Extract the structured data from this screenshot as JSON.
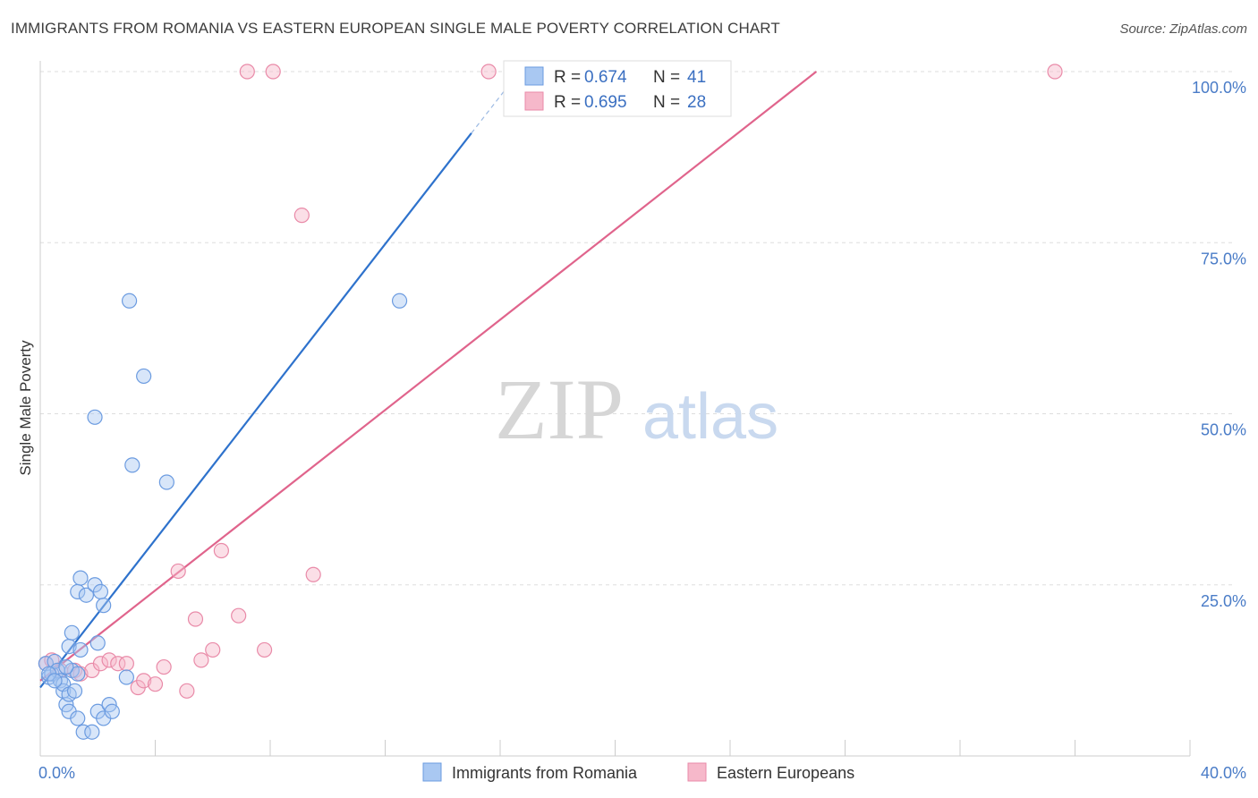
{
  "header": {
    "title": "IMMIGRANTS FROM ROMANIA VS EASTERN EUROPEAN SINGLE MALE POVERTY CORRELATION CHART",
    "source": "Source: ZipAtlas.com"
  },
  "watermark": {
    "zip": "ZIP",
    "atlas": "atlas"
  },
  "colors": {
    "blue_fill": "#a9c8f2",
    "blue_stroke": "#6b9be0",
    "blue_line": "#2e72cc",
    "pink_fill": "#f6b8ca",
    "pink_stroke": "#e98aa8",
    "pink_line": "#e0648c",
    "grid": "#dddddd",
    "tick_text": "#4a7cc7"
  },
  "chart_data": {
    "type": "scatter",
    "title": "IMMIGRANTS FROM ROMANIA VS EASTERN EUROPEAN SINGLE MALE POVERTY CORRELATION CHART",
    "xlabel": "",
    "ylabel": "Single Male Poverty",
    "xlim": [
      0,
      40
    ],
    "ylim": [
      0,
      100
    ],
    "x_tick_labels": [
      "0.0%",
      "40.0%"
    ],
    "y_ticks": [
      25,
      50,
      75,
      100
    ],
    "y_tick_labels": [
      "25.0%",
      "50.0%",
      "75.0%",
      "100.0%"
    ],
    "grid": true,
    "legend_position": "bottom-center",
    "stats": [
      {
        "r_label": "R =",
        "r_value": "0.674",
        "n_label": "N =",
        "n_value": "41"
      },
      {
        "r_label": "R =",
        "r_value": "0.695",
        "n_label": "N =",
        "n_value": "28"
      }
    ],
    "series": [
      {
        "name": "Immigrants from Romania",
        "color": "#a9c8f2",
        "trend": {
          "x0": 0.0,
          "y0": 10.0,
          "x1": 15.0,
          "y1": 91.0,
          "dashed_to_x": 16.5
        },
        "points": [
          [
            0.2,
            13.5
          ],
          [
            0.3,
            11.5
          ],
          [
            0.4,
            12.0
          ],
          [
            0.5,
            13.8
          ],
          [
            0.6,
            12.5
          ],
          [
            0.7,
            11.0
          ],
          [
            0.8,
            9.5
          ],
          [
            0.8,
            10.5
          ],
          [
            0.9,
            7.5
          ],
          [
            1.0,
            6.5
          ],
          [
            1.0,
            9.0
          ],
          [
            1.1,
            12.5
          ],
          [
            1.2,
            9.5
          ],
          [
            1.0,
            16.0
          ],
          [
            1.1,
            18.0
          ],
          [
            1.3,
            12.0
          ],
          [
            1.3,
            5.5
          ],
          [
            1.3,
            24.0
          ],
          [
            1.4,
            26.0
          ],
          [
            1.4,
            15.5
          ],
          [
            1.5,
            3.5
          ],
          [
            1.6,
            23.5
          ],
          [
            1.8,
            3.5
          ],
          [
            1.9,
            49.5
          ],
          [
            1.9,
            25.0
          ],
          [
            2.0,
            16.5
          ],
          [
            2.0,
            6.5
          ],
          [
            2.1,
            24.0
          ],
          [
            2.2,
            22.0
          ],
          [
            2.2,
            5.5
          ],
          [
            2.4,
            7.5
          ],
          [
            2.5,
            6.5
          ],
          [
            3.0,
            11.5
          ],
          [
            3.1,
            66.5
          ],
          [
            3.2,
            42.5
          ],
          [
            3.6,
            55.5
          ],
          [
            4.4,
            40.0
          ],
          [
            12.5,
            66.5
          ],
          [
            0.3,
            12.0
          ],
          [
            0.5,
            11.0
          ],
          [
            0.9,
            13.0
          ]
        ]
      },
      {
        "name": "Eastern Europeans",
        "color": "#f6b8ca",
        "trend": {
          "x0": 0.0,
          "y0": 11.0,
          "x1": 27.0,
          "y1": 100.0
        },
        "points": [
          [
            0.2,
            13.5
          ],
          [
            0.4,
            14.0
          ],
          [
            0.7,
            12.5
          ],
          [
            1.2,
            12.5
          ],
          [
            1.4,
            12.0
          ],
          [
            1.8,
            12.5
          ],
          [
            2.1,
            13.5
          ],
          [
            2.4,
            14.0
          ],
          [
            2.7,
            13.5
          ],
          [
            3.0,
            13.5
          ],
          [
            3.4,
            10.0
          ],
          [
            3.6,
            11.0
          ],
          [
            4.0,
            10.5
          ],
          [
            4.3,
            13.0
          ],
          [
            4.8,
            27.0
          ],
          [
            5.1,
            9.5
          ],
          [
            5.4,
            20.0
          ],
          [
            5.6,
            14.0
          ],
          [
            6.0,
            15.5
          ],
          [
            6.3,
            30.0
          ],
          [
            6.9,
            20.5
          ],
          [
            7.2,
            100.0
          ],
          [
            7.8,
            15.5
          ],
          [
            8.1,
            100.0
          ],
          [
            9.1,
            79.0
          ],
          [
            9.5,
            26.5
          ],
          [
            15.6,
            100.0
          ],
          [
            35.3,
            100.0
          ]
        ]
      }
    ]
  },
  "legend": {
    "items": [
      {
        "label": "Immigrants from Romania"
      },
      {
        "label": "Eastern Europeans"
      }
    ]
  }
}
